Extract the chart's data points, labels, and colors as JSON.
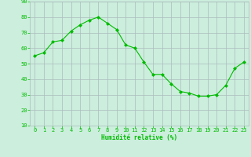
{
  "x": [
    0,
    1,
    2,
    3,
    4,
    5,
    6,
    7,
    8,
    9,
    10,
    11,
    12,
    13,
    14,
    15,
    16,
    17,
    18,
    19,
    20,
    21,
    22,
    23
  ],
  "y": [
    55,
    57,
    64,
    65,
    71,
    75,
    78,
    80,
    76,
    72,
    62,
    60,
    51,
    43,
    43,
    37,
    32,
    31,
    29,
    29,
    30,
    36,
    47,
    51
  ],
  "xlabel": "Humidité relative (%)",
  "ylim": [
    10,
    90
  ],
  "xlim_min": -0.5,
  "xlim_max": 23.5,
  "yticks": [
    10,
    20,
    30,
    40,
    50,
    60,
    70,
    80,
    90
  ],
  "xticks": [
    0,
    1,
    2,
    3,
    4,
    5,
    6,
    7,
    8,
    9,
    10,
    11,
    12,
    13,
    14,
    15,
    16,
    17,
    18,
    19,
    20,
    21,
    22,
    23
  ],
  "line_color": "#00bb00",
  "marker_color": "#00bb00",
  "bg_color": "#cceedd",
  "grid_color": "#aabbbb",
  "xlabel_color": "#00bb00",
  "tick_color": "#00bb00",
  "tick_fontsize": 5.0,
  "xlabel_fontsize": 5.5,
  "marker_size": 2.0,
  "line_width": 0.8
}
